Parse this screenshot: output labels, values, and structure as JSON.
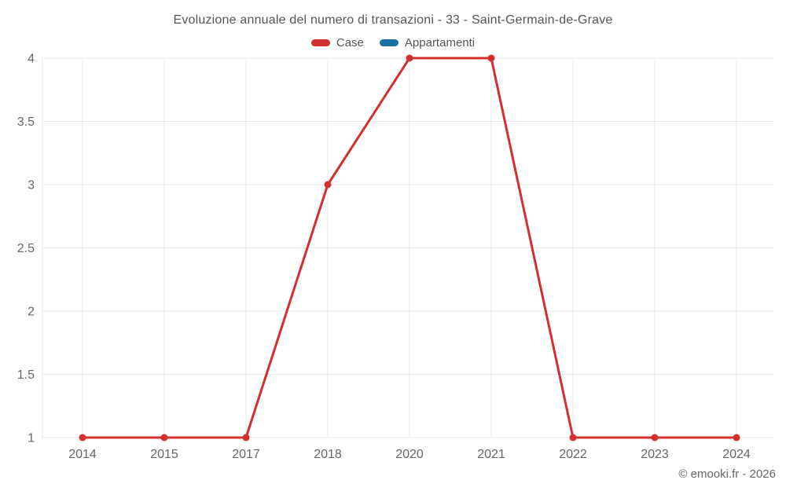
{
  "chart_data": {
    "type": "line",
    "title": "Evoluzione annuale del numero di transazioni - 33 - Saint-Germain-de-Grave",
    "categories": [
      "2014",
      "2015",
      "2017",
      "2018",
      "2020",
      "2021",
      "2022",
      "2023",
      "2024"
    ],
    "series": [
      {
        "name": "Case",
        "color": "#d32f2f",
        "values": [
          1,
          1,
          1,
          3,
          4,
          4,
          1,
          1,
          1
        ]
      },
      {
        "name": "Appartamenti",
        "color": "#17709f",
        "values": []
      }
    ],
    "y_ticks": [
      1,
      1.5,
      2,
      2.5,
      3,
      3.5,
      4
    ],
    "ylim": [
      1,
      4
    ],
    "xlabel": "",
    "ylabel": "",
    "grid": true,
    "legend_position": "top",
    "colors": {
      "grid": "#e8e8e8",
      "axis_text": "#666666",
      "title_text": "#555555"
    }
  },
  "watermark": "© emooki.fr - 2026"
}
